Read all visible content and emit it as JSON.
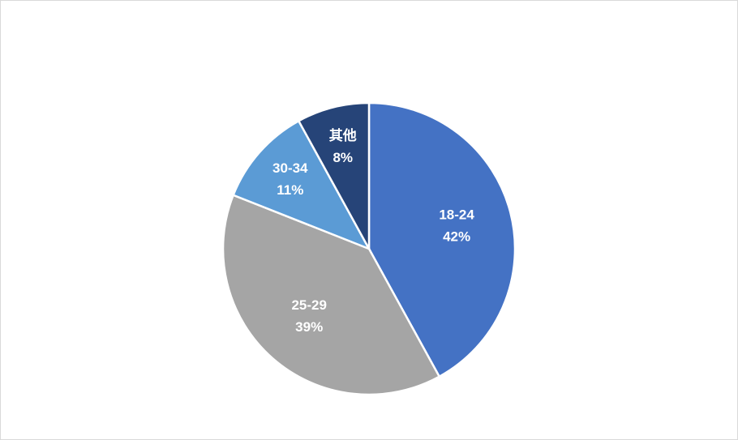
{
  "chart_data": {
    "type": "pie",
    "categories": [
      "18-24",
      "25-29",
      "30-34",
      "其他"
    ],
    "values": [
      42,
      39,
      11,
      8
    ],
    "value_labels": [
      "42%",
      "39%",
      "11%",
      "8%"
    ],
    "colors": [
      "#4472c4",
      "#a5a5a5",
      "#5b9bd5",
      "#264478"
    ]
  }
}
